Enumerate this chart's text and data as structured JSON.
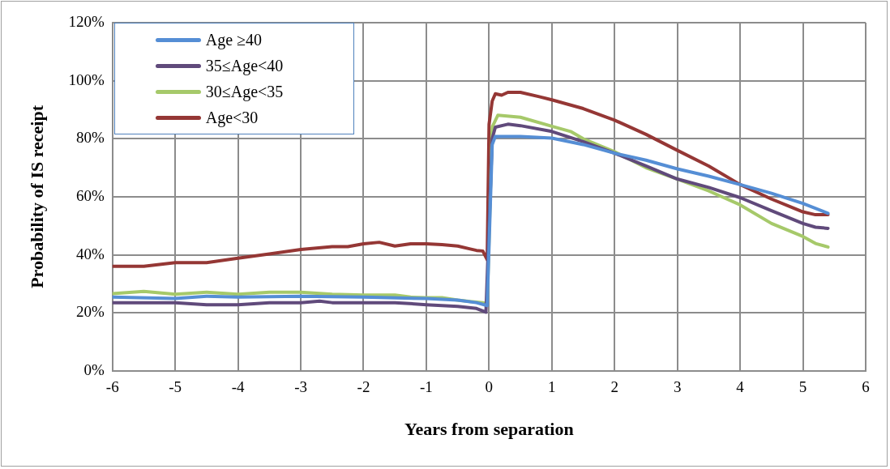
{
  "chart_data": {
    "type": "line",
    "xlabel": "Years from separation",
    "ylabel": "Probability of IS receipt",
    "xlim": [
      -6,
      6
    ],
    "xticks": [
      -6,
      -5,
      -4,
      -3,
      -2,
      -1,
      0,
      1,
      2,
      3,
      4,
      5,
      6
    ],
    "ylim": [
      0,
      120
    ],
    "yticks": [
      {
        "value": 0,
        "label": "0%"
      },
      {
        "value": 20,
        "label": "20%"
      },
      {
        "value": 40,
        "label": "40%"
      },
      {
        "value": 60,
        "label": "60%"
      },
      {
        "value": 80,
        "label": "80%"
      },
      {
        "value": 100,
        "label": "100%"
      },
      {
        "value": 120,
        "label": "120%"
      }
    ],
    "grid": true,
    "legend": "top left",
    "marker": "none",
    "line_style": "solid",
    "series": [
      {
        "name": "Age ≥40",
        "color": "#558ed5",
        "x": [
          -6,
          -5,
          -4.5,
          -4,
          -3,
          -2,
          -1,
          -0.5,
          -0.2,
          -0.03,
          0.05,
          0.1,
          0.5,
          1,
          1.5,
          2,
          2.5,
          3,
          3.5,
          4,
          4.5,
          5,
          5.4
        ],
        "values": [
          25.4,
          24.9,
          25.7,
          25.4,
          25.7,
          25.4,
          24.9,
          24.4,
          23.5,
          22.5,
          78,
          80.8,
          80.8,
          80.2,
          78,
          75,
          72.6,
          69.6,
          67.1,
          64.2,
          61.2,
          57.7,
          54.3
        ]
      },
      {
        "name": "35≤Age<40",
        "color": "#604a7b",
        "x": [
          -6,
          -5,
          -4.5,
          -4,
          -3.5,
          -3,
          -2.7,
          -2.5,
          -1.5,
          -1,
          -0.5,
          -0.2,
          -0.05,
          0.05,
          0.1,
          0.3,
          0.5,
          1,
          1.5,
          2,
          2.5,
          3,
          3.5,
          4,
          4.5,
          5,
          5.2,
          5.4
        ],
        "values": [
          23.5,
          23.5,
          22.8,
          22.8,
          23.5,
          23.5,
          24,
          23.5,
          23.5,
          22.8,
          22.2,
          21.5,
          20.2,
          80,
          84,
          85,
          84.5,
          82.5,
          79,
          75,
          70.6,
          66.1,
          63.2,
          59.7,
          55.2,
          50.8,
          49.5,
          49.1
        ]
      },
      {
        "name": "30≤Age<35",
        "color": "#a6c96a",
        "x": [
          -6,
          -5.5,
          -5,
          -4.5,
          -4,
          -3.5,
          -3,
          -2.5,
          -2,
          -1.5,
          -1.25,
          -1,
          -0.75,
          -0.5,
          -0.3,
          -0.1,
          -0.03,
          0.05,
          0.14,
          0.5,
          1,
          1.3,
          1.5,
          2,
          2.5,
          3,
          3.5,
          4,
          4.5,
          5,
          5.2,
          5.4
        ],
        "values": [
          26.6,
          27.4,
          26.4,
          27.1,
          26.4,
          27.1,
          27.1,
          26.4,
          26.1,
          26.1,
          25.4,
          25.2,
          25.2,
          24.4,
          23.9,
          23.5,
          23,
          84,
          88.1,
          87.4,
          84.3,
          82.5,
          80,
          75.5,
          70,
          66.1,
          62,
          57.2,
          50.8,
          46.3,
          43.9,
          42.7
        ]
      },
      {
        "name": "Age<30",
        "color": "#953735",
        "x": [
          -6,
          -5.5,
          -5,
          -4.5,
          -4,
          -3.5,
          -3,
          -2.5,
          -2.25,
          -2,
          -1.75,
          -1.5,
          -1.25,
          -1,
          -0.75,
          -0.5,
          -0.3,
          -0.2,
          -0.1,
          -0.03,
          0,
          0.05,
          0.1,
          0.2,
          0.3,
          0.5,
          0.8,
          1,
          1.5,
          2,
          2.5,
          3,
          3.5,
          4,
          4.5,
          5,
          5.2,
          5.4
        ],
        "values": [
          36,
          36,
          37.3,
          37.3,
          38.8,
          40.3,
          41.8,
          42.8,
          42.8,
          43.8,
          44.3,
          43,
          43.8,
          43.8,
          43.5,
          43,
          42,
          41.5,
          41.3,
          38.3,
          85,
          93,
          95.5,
          95,
          96,
          96,
          94.5,
          93.4,
          90.4,
          86.4,
          81.5,
          76,
          70.6,
          64.2,
          59.2,
          54.8,
          53.8,
          53.8
        ]
      }
    ]
  }
}
